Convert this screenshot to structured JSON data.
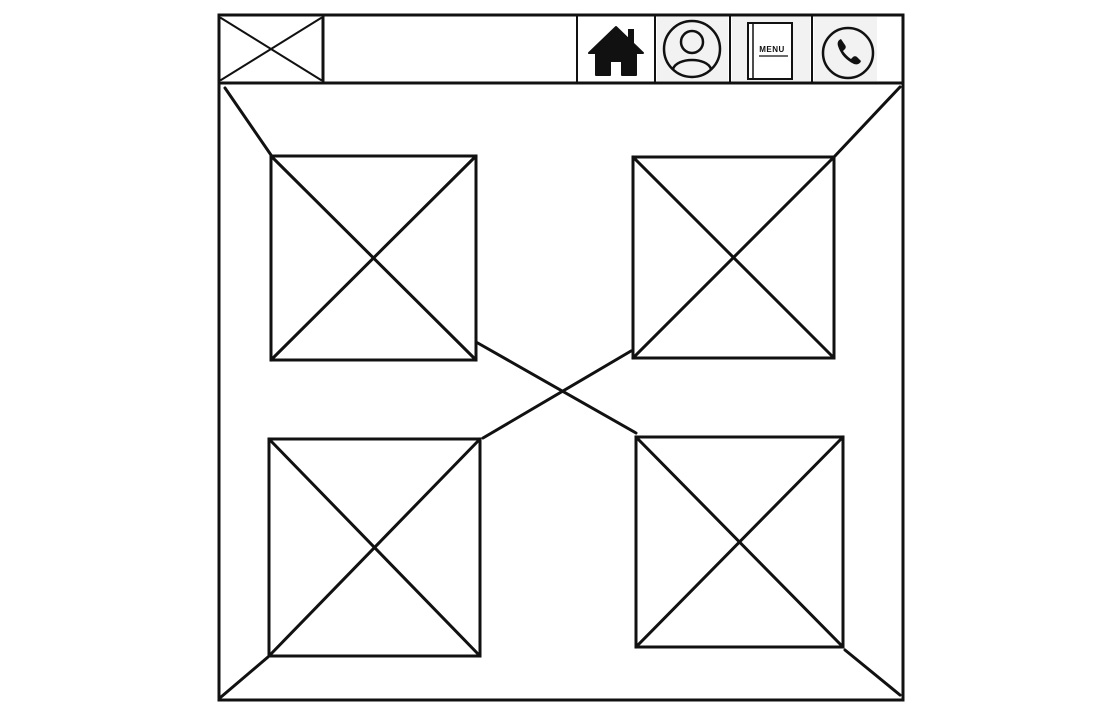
{
  "header": {
    "nav": [
      {
        "name": "home",
        "icon": "home-icon"
      },
      {
        "name": "profile",
        "icon": "user-icon"
      },
      {
        "name": "menu",
        "icon": "menu-book-icon",
        "label": "MENU"
      },
      {
        "name": "contact",
        "icon": "phone-icon"
      }
    ]
  },
  "colors": {
    "stroke": "#111111",
    "background": "#ffffff",
    "icon_bg": "#f2f2f2"
  }
}
